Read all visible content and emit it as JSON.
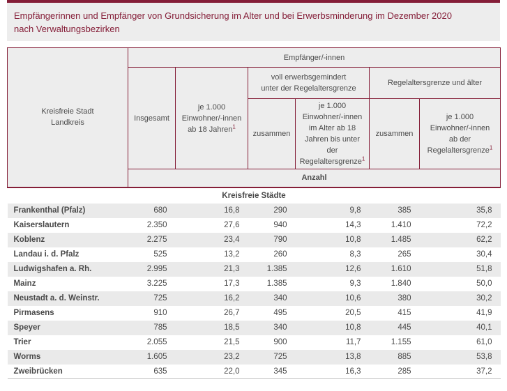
{
  "colors": {
    "accent": "#851E38",
    "panel": "#EDEDED",
    "stripe": "#EAEAEA",
    "text": "#4A4A4A",
    "rule": "#BFBFBF"
  },
  "page": {
    "title": "Empfängerinnen und Empfänger von Grundsicherung im Alter und bei Erwerbsminderung im Dezember 2020\nnach Verwaltungsbezirken"
  },
  "table": {
    "header": {
      "row_dimension": "Kreisfreie Stadt\nLandkreis",
      "group_top": "Empfänger/-innen",
      "col_insgesamt": "Insgesamt",
      "col_per1000_adults": {
        "text": "je 1.000\nEinwohner/-innen\nab 18 Jahren",
        "sup": "1"
      },
      "group_disability": "voll erwerbsgemindert\nunter der Regelaltersgrenze",
      "group_retirement": "Regelaltersgrenze und älter",
      "col_zusammen_disability": "zusammen",
      "col_per1000_working_age": {
        "text": "je 1.000\nEinwohner/-innen\nim Alter ab 18\nJahren bis unter\nder\nRegelaltersgrenze",
        "sup": "1"
      },
      "col_zusammen_retirement": "zusammen",
      "col_per1000_retirement_age": {
        "text": "je 1.000\nEinwohner/-innen\nab der\nRegelaltersgrenze",
        "sup": "1"
      },
      "unit_label": "Anzahl"
    },
    "section_label": "Kreisfreie Städte",
    "rows": [
      {
        "name": "Frankenthal (Pfalz)",
        "values": [
          "680",
          "16,8",
          "290",
          "9,8",
          "385",
          "35,8"
        ]
      },
      {
        "name": "Kaiserslautern",
        "values": [
          "2.350",
          "27,6",
          "940",
          "14,3",
          "1.410",
          "72,2"
        ]
      },
      {
        "name": "Koblenz",
        "values": [
          "2.275",
          "23,4",
          "790",
          "10,8",
          "1.485",
          "62,2"
        ]
      },
      {
        "name": "Landau i. d. Pfalz",
        "values": [
          "525",
          "13,2",
          "260",
          "8,3",
          "265",
          "30,4"
        ]
      },
      {
        "name": "Ludwigshafen a. Rh.",
        "values": [
          "2.995",
          "21,3",
          "1.385",
          "12,6",
          "1.610",
          "51,8"
        ]
      },
      {
        "name": "Mainz",
        "values": [
          "3.225",
          "17,3",
          "1.385",
          "9,3",
          "1.840",
          "50,0"
        ]
      },
      {
        "name": "Neustadt a. d. Weinstr.",
        "values": [
          "725",
          "16,2",
          "340",
          "10,6",
          "380",
          "30,2"
        ]
      },
      {
        "name": "Pirmasens",
        "values": [
          "910",
          "26,7",
          "495",
          "20,5",
          "415",
          "41,9"
        ]
      },
      {
        "name": "Speyer",
        "values": [
          "785",
          "18,5",
          "340",
          "10,8",
          "445",
          "40,1"
        ]
      },
      {
        "name": "Trier",
        "values": [
          "2.055",
          "21,5",
          "900",
          "11,7",
          "1.155",
          "61,0"
        ]
      },
      {
        "name": "Worms",
        "values": [
          "1.605",
          "23,2",
          "725",
          "13,8",
          "885",
          "53,8"
        ]
      },
      {
        "name": "Zweibrücken",
        "values": [
          "635",
          "22,0",
          "345",
          "16,3",
          "285",
          "37,2"
        ]
      }
    ]
  }
}
